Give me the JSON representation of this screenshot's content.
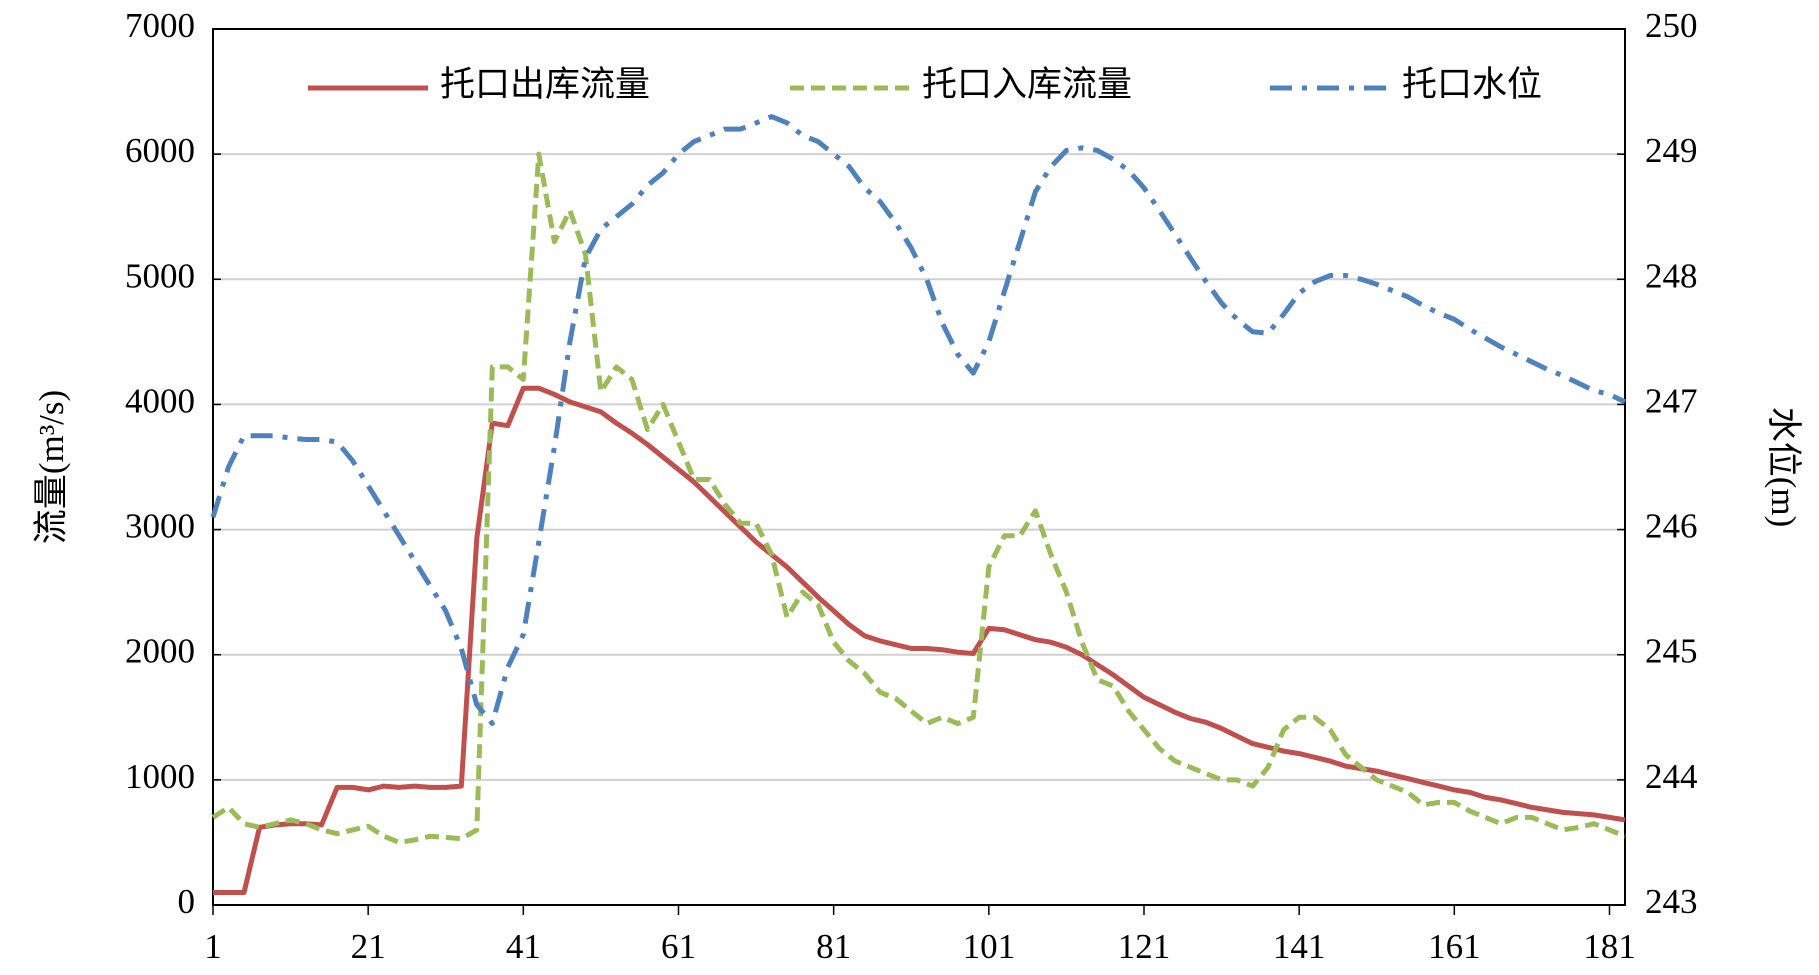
{
  "chart_data": {
    "type": "line",
    "y_label": "流量(m³/s)",
    "y2_label": "水位(m)",
    "x": [
      1,
      3,
      5,
      7,
      9,
      11,
      13,
      15,
      17,
      19,
      21,
      23,
      25,
      27,
      29,
      31,
      33,
      35,
      37,
      39,
      41,
      43,
      45,
      47,
      49,
      51,
      53,
      55,
      57,
      59,
      61,
      63,
      65,
      67,
      69,
      71,
      73,
      75,
      77,
      79,
      81,
      83,
      85,
      87,
      89,
      91,
      93,
      95,
      97,
      99,
      101,
      103,
      105,
      107,
      109,
      111,
      113,
      115,
      117,
      119,
      121,
      123,
      125,
      127,
      129,
      131,
      133,
      135,
      137,
      139,
      141,
      143,
      145,
      147,
      149,
      151,
      153,
      155,
      157,
      159,
      161,
      163,
      165,
      167,
      169,
      171,
      173,
      175,
      177,
      179,
      181,
      183
    ],
    "series": [
      {
        "name": "托口出库流量",
        "color": "#c0504d",
        "style": "solid",
        "values": [
          100,
          100,
          100,
          620,
          640,
          650,
          650,
          640,
          940,
          940,
          920,
          950,
          940,
          950,
          940,
          940,
          950,
          2930,
          3850,
          3830,
          4130,
          4130,
          4080,
          4020,
          3980,
          3940,
          3850,
          3770,
          3680,
          3580,
          3480,
          3380,
          3260,
          3140,
          3020,
          2900,
          2800,
          2700,
          2580,
          2460,
          2350,
          2240,
          2150,
          2110,
          2080,
          2050,
          2050,
          2040,
          2020,
          2010,
          2210,
          2200,
          2160,
          2120,
          2100,
          2060,
          2000,
          1920,
          1840,
          1750,
          1660,
          1600,
          1540,
          1490,
          1460,
          1410,
          1350,
          1290,
          1260,
          1230,
          1210,
          1180,
          1150,
          1110,
          1090,
          1070,
          1040,
          1010,
          980,
          950,
          920,
          900,
          860,
          840,
          810,
          780,
          760,
          740,
          730,
          720,
          700,
          680
        ]
      },
      {
        "name": "托口入库流量",
        "color": "#9bbb59",
        "style": "dashed",
        "values": [
          700,
          780,
          650,
          620,
          650,
          680,
          650,
          600,
          570,
          600,
          630,
          550,
          500,
          520,
          550,
          540,
          530,
          600,
          4300,
          4300,
          4200,
          6000,
          5300,
          5550,
          5200,
          4100,
          4300,
          4200,
          3800,
          4000,
          3700,
          3400,
          3400,
          3200,
          3050,
          3050,
          2800,
          2300,
          2500,
          2400,
          2100,
          1950,
          1850,
          1700,
          1650,
          1550,
          1450,
          1500,
          1450,
          1500,
          2700,
          2950,
          2950,
          3150,
          2800,
          2500,
          2100,
          1800,
          1750,
          1550,
          1400,
          1250,
          1150,
          1100,
          1050,
          1000,
          1000,
          950,
          1100,
          1400,
          1500,
          1500,
          1400,
          1200,
          1100,
          1000,
          950,
          900,
          800,
          820,
          820,
          750,
          700,
          650,
          700,
          700,
          650,
          600,
          620,
          650,
          600,
          550
        ]
      },
      {
        "name": "托口水位",
        "color": "#4f81bd",
        "style": "dashdot",
        "axis": "y2",
        "values": [
          246.1,
          246.5,
          246.75,
          246.75,
          246.75,
          246.73,
          246.72,
          246.72,
          246.7,
          246.55,
          246.35,
          246.15,
          245.95,
          245.75,
          245.55,
          245.35,
          245.05,
          244.6,
          244.45,
          244.9,
          245.16,
          245.9,
          246.66,
          247.5,
          248.17,
          248.4,
          248.5,
          248.6,
          248.75,
          248.85,
          249.0,
          249.1,
          249.15,
          249.2,
          249.2,
          249.25,
          249.3,
          249.25,
          249.15,
          249.1,
          249.0,
          248.9,
          248.73,
          248.62,
          248.45,
          248.25,
          248.0,
          247.65,
          247.4,
          247.25,
          247.5,
          247.9,
          248.3,
          248.7,
          248.9,
          249.03,
          249.05,
          249.03,
          248.96,
          248.87,
          248.73,
          248.55,
          248.36,
          248.17,
          247.98,
          247.81,
          247.68,
          247.58,
          247.57,
          247.72,
          247.89,
          247.98,
          248.03,
          248.03,
          248.0,
          247.96,
          247.91,
          247.86,
          247.79,
          247.73,
          247.68,
          247.6,
          247.53,
          247.46,
          247.4,
          247.34,
          247.28,
          247.23,
          247.17,
          247.11,
          247.08,
          247.02
        ]
      }
    ],
    "xlim": [
      1,
      183
    ],
    "xticks": [
      1,
      21,
      41,
      61,
      81,
      101,
      121,
      141,
      161,
      181
    ],
    "ylim": [
      0,
      7000
    ],
    "yticks": [
      0,
      1000,
      2000,
      3000,
      4000,
      5000,
      6000,
      7000
    ],
    "y2lim": [
      243,
      250
    ],
    "y2ticks": [
      243,
      244,
      245,
      246,
      247,
      248,
      249,
      250
    ],
    "grid": true,
    "legend": "top"
  }
}
